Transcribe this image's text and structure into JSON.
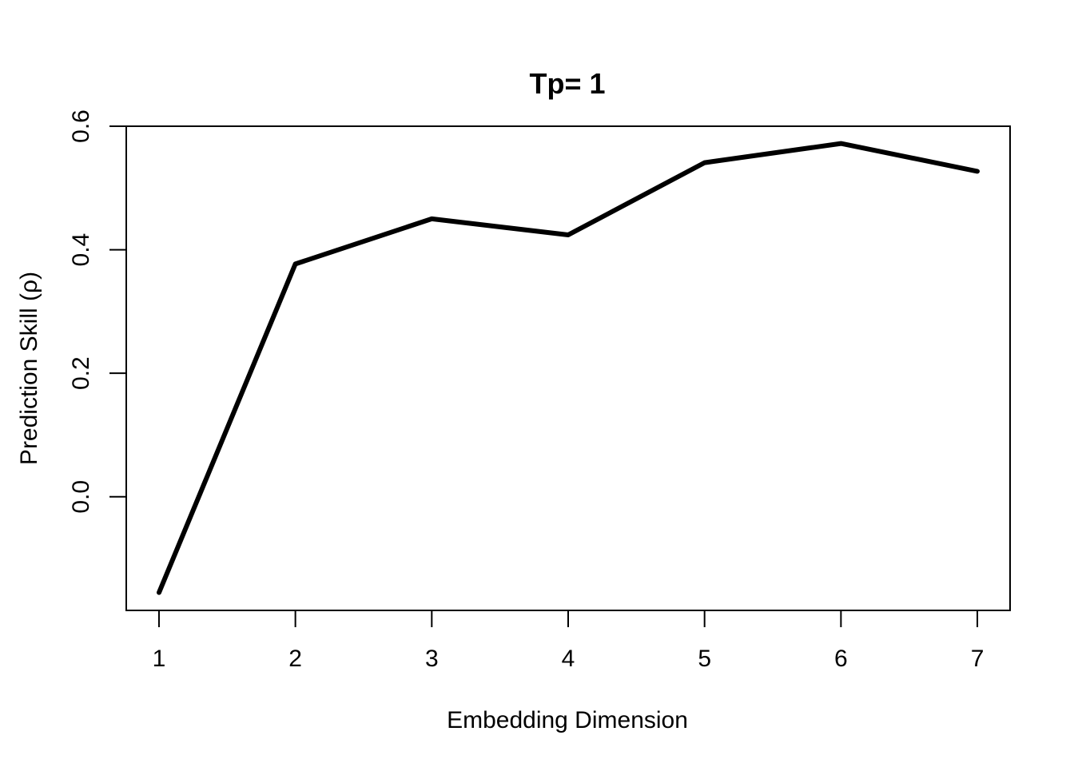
{
  "chart_data": {
    "type": "line",
    "title": "Tp= 1",
    "xlabel": "Embedding Dimension",
    "ylabel": "Prediction Skill (ρ)",
    "x": [
      1,
      2,
      3,
      4,
      5,
      6,
      7
    ],
    "series": [
      {
        "values": [
          -0.155,
          0.377,
          0.45,
          0.424,
          0.541,
          0.572,
          0.527
        ],
        "color": "#000000"
      }
    ],
    "xticks": [
      1,
      2,
      3,
      4,
      5,
      6,
      7
    ],
    "xtick_labels": [
      "1",
      "2",
      "3",
      "4",
      "5",
      "6",
      "7"
    ],
    "yticks": [
      0.0,
      0.2,
      0.4,
      0.6
    ],
    "ytick_labels": [
      "0.0",
      "0.2",
      "0.4",
      "0.6"
    ],
    "xlim": [
      0.76,
      7.24
    ],
    "ylim": [
      -0.184,
      0.6
    ],
    "grid": false,
    "legend": "none"
  }
}
